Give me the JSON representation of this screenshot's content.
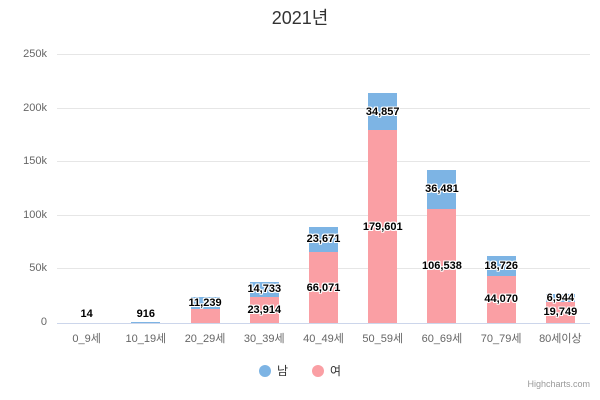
{
  "title": "2021년",
  "credits": "Highcharts.com",
  "colors": {
    "male_blue": "#7db4e4",
    "female_pink": "#fa9fa4",
    "grid": "#e6e6e6",
    "axis_line": "#ccd6eb",
    "title_text": "#333333",
    "axis_text": "#666666",
    "label_text": "#000000",
    "credits_text": "#999999",
    "background": "#ffffff"
  },
  "chart_data": {
    "type": "bar",
    "stacked": true,
    "title": "2021년",
    "categories": [
      "0_9세",
      "10_19세",
      "20_29세",
      "30_39세",
      "40_49세",
      "50_59세",
      "60_69세",
      "70_79세",
      "80세이상"
    ],
    "series": [
      {
        "name": "남",
        "color": "#7db4e4",
        "values": [
          14,
          916,
          11239,
          14733,
          23671,
          34857,
          36481,
          18726,
          6944
        ],
        "labels": [
          "14",
          "916",
          "11,239",
          "14,733",
          "23,671",
          "34,857",
          "36,481",
          "18,726",
          "6,944"
        ],
        "label_visible": [
          true,
          true,
          true,
          true,
          true,
          true,
          true,
          true,
          true
        ]
      },
      {
        "name": "여",
        "color": "#fa9fa4",
        "values": [
          null,
          null,
          13000,
          23914,
          66071,
          179601,
          106538,
          44070,
          19749
        ],
        "labels": [
          null,
          null,
          null,
          "23,914",
          "66,071",
          "179,601",
          "106,538",
          "44,070",
          "19,749"
        ],
        "label_visible": [
          false,
          false,
          false,
          true,
          true,
          true,
          true,
          true,
          true
        ]
      }
    ],
    "stack_order_bottom_to_top": [
      "여",
      "남"
    ],
    "xlabel": "",
    "ylabel": "",
    "ylim": [
      0,
      250000
    ],
    "yticks": {
      "values": [
        0,
        50000,
        100000,
        150000,
        200000,
        250000
      ],
      "labels": [
        "0",
        "50k",
        "100k",
        "150k",
        "200k",
        "250k"
      ]
    },
    "grid": true,
    "legend_position": "bottom"
  }
}
